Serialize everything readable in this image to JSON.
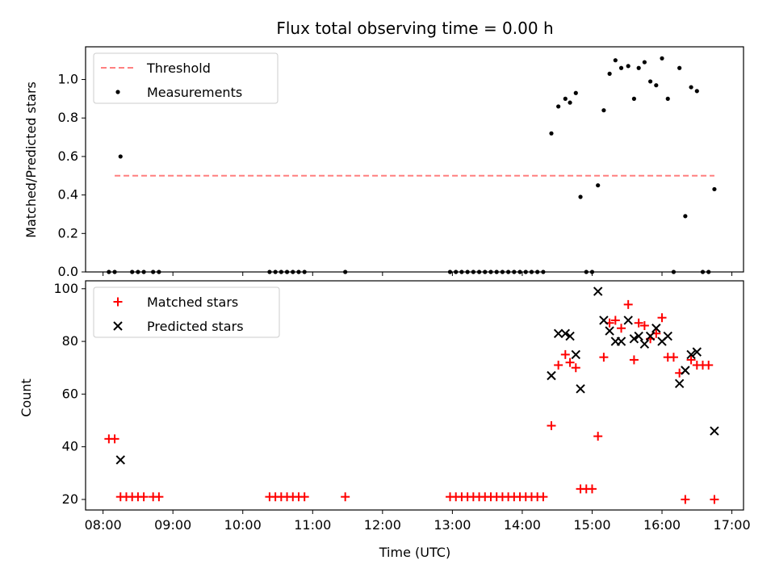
{
  "chart_data": [
    {
      "type": "scatter",
      "title": "Flux total observing time = 0.00 h",
      "ylabel": "Matched/Predicted stars",
      "xlim": [
        "07:45",
        "17:10"
      ],
      "ylim": [
        0,
        1.17
      ],
      "yticks": [
        0.0,
        0.2,
        0.4,
        0.6,
        0.8,
        1.0
      ],
      "ytick_labels": [
        "0.0",
        "0.2",
        "0.4",
        "0.6",
        "0.8",
        "1.0"
      ],
      "grid": false,
      "legend_position": "top-left",
      "legend": [
        {
          "label": "Threshold",
          "style": "dashed-line",
          "color": "#ff7f7f"
        },
        {
          "label": "Measurements",
          "style": "dot",
          "color": "#000000"
        }
      ],
      "threshold": {
        "value": 0.5,
        "x_start": "08:10",
        "x_end": "16:45"
      },
      "series": [
        {
          "name": "Measurements",
          "color": "#000000",
          "points": [
            [
              "08:05",
              0
            ],
            [
              "08:10",
              0
            ],
            [
              "08:15",
              0.6
            ],
            [
              "08:25",
              0
            ],
            [
              "08:30",
              0
            ],
            [
              "08:35",
              0
            ],
            [
              "08:43",
              0
            ],
            [
              "08:48",
              0
            ],
            [
              "10:23",
              0
            ],
            [
              "10:28",
              0
            ],
            [
              "10:33",
              0
            ],
            [
              "10:38",
              0
            ],
            [
              "10:43",
              0
            ],
            [
              "10:48",
              0
            ],
            [
              "10:53",
              0
            ],
            [
              "11:28",
              0
            ],
            [
              "12:58",
              0
            ],
            [
              "13:03",
              0
            ],
            [
              "13:08",
              0
            ],
            [
              "13:13",
              0
            ],
            [
              "13:18",
              0
            ],
            [
              "13:23",
              0
            ],
            [
              "13:28",
              0
            ],
            [
              "13:33",
              0
            ],
            [
              "13:38",
              0
            ],
            [
              "13:43",
              0
            ],
            [
              "13:48",
              0
            ],
            [
              "13:53",
              0
            ],
            [
              "13:58",
              0
            ],
            [
              "14:03",
              0
            ],
            [
              "14:08",
              0
            ],
            [
              "14:13",
              0
            ],
            [
              "14:18",
              0
            ],
            [
              "14:25",
              0.72
            ],
            [
              "14:31",
              0.86
            ],
            [
              "14:37",
              0.9
            ],
            [
              "14:41",
              0.88
            ],
            [
              "14:46",
              0.93
            ],
            [
              "14:50",
              0.39
            ],
            [
              "14:55",
              0
            ],
            [
              "15:00",
              0
            ],
            [
              "15:05",
              0.45
            ],
            [
              "15:10",
              0.84
            ],
            [
              "15:15",
              1.03
            ],
            [
              "15:20",
              1.1
            ],
            [
              "15:25",
              1.06
            ],
            [
              "15:31",
              1.07
            ],
            [
              "15:36",
              0.9
            ],
            [
              "15:40",
              1.06
            ],
            [
              "15:45",
              1.09
            ],
            [
              "15:50",
              0.99
            ],
            [
              "15:55",
              0.97
            ],
            [
              "16:00",
              1.11
            ],
            [
              "16:05",
              0.9
            ],
            [
              "16:10",
              0
            ],
            [
              "16:15",
              1.06
            ],
            [
              "16:20",
              0.29
            ],
            [
              "16:25",
              0.96
            ],
            [
              "16:30",
              0.94
            ],
            [
              "16:35",
              0
            ],
            [
              "16:40",
              0
            ],
            [
              "16:45",
              0.43
            ]
          ]
        }
      ]
    },
    {
      "type": "scatter",
      "xlabel": "Time (UTC)",
      "ylabel": "Count",
      "xlim": [
        "07:45",
        "17:10"
      ],
      "ylim": [
        16,
        103
      ],
      "yticks": [
        20,
        40,
        60,
        80,
        100
      ],
      "ytick_labels": [
        "20",
        "40",
        "60",
        "80",
        "100"
      ],
      "xticks": [
        "08:00",
        "09:00",
        "10:00",
        "11:00",
        "12:00",
        "13:00",
        "14:00",
        "15:00",
        "16:00",
        "17:00"
      ],
      "grid": false,
      "legend_position": "top-left",
      "legend": [
        {
          "label": "Matched stars",
          "style": "plus",
          "color": "#ff0000"
        },
        {
          "label": "Predicted stars",
          "style": "x",
          "color": "#000000"
        }
      ],
      "series": [
        {
          "name": "Matched stars",
          "marker": "plus",
          "color": "#ff0000",
          "points": [
            [
              "08:05",
              43
            ],
            [
              "08:10",
              43
            ],
            [
              "08:15",
              21
            ],
            [
              "08:20",
              21
            ],
            [
              "08:25",
              21
            ],
            [
              "08:30",
              21
            ],
            [
              "08:35",
              21
            ],
            [
              "08:43",
              21
            ],
            [
              "08:48",
              21
            ],
            [
              "10:23",
              21
            ],
            [
              "10:28",
              21
            ],
            [
              "10:33",
              21
            ],
            [
              "10:38",
              21
            ],
            [
              "10:43",
              21
            ],
            [
              "10:48",
              21
            ],
            [
              "10:53",
              21
            ],
            [
              "11:28",
              21
            ],
            [
              "12:58",
              21
            ],
            [
              "13:03",
              21
            ],
            [
              "13:08",
              21
            ],
            [
              "13:13",
              21
            ],
            [
              "13:18",
              21
            ],
            [
              "13:23",
              21
            ],
            [
              "13:28",
              21
            ],
            [
              "13:33",
              21
            ],
            [
              "13:38",
              21
            ],
            [
              "13:43",
              21
            ],
            [
              "13:48",
              21
            ],
            [
              "13:53",
              21
            ],
            [
              "13:58",
              21
            ],
            [
              "14:03",
              21
            ],
            [
              "14:08",
              21
            ],
            [
              "14:13",
              21
            ],
            [
              "14:18",
              21
            ],
            [
              "14:25",
              48
            ],
            [
              "14:31",
              71
            ],
            [
              "14:37",
              75
            ],
            [
              "14:41",
              72
            ],
            [
              "14:46",
              70
            ],
            [
              "14:50",
              24
            ],
            [
              "14:55",
              24
            ],
            [
              "15:00",
              24
            ],
            [
              "15:05",
              44
            ],
            [
              "15:10",
              74
            ],
            [
              "15:15",
              87
            ],
            [
              "15:20",
              88
            ],
            [
              "15:25",
              85
            ],
            [
              "15:31",
              94
            ],
            [
              "15:36",
              73
            ],
            [
              "15:40",
              87
            ],
            [
              "15:45",
              86
            ],
            [
              "15:50",
              81
            ],
            [
              "15:55",
              83
            ],
            [
              "16:00",
              89
            ],
            [
              "16:05",
              74
            ],
            [
              "16:10",
              74
            ],
            [
              "16:15",
              68
            ],
            [
              "16:20",
              20
            ],
            [
              "16:25",
              73
            ],
            [
              "16:30",
              71
            ],
            [
              "16:35",
              71
            ],
            [
              "16:40",
              71
            ],
            [
              "16:45",
              20
            ]
          ]
        },
        {
          "name": "Predicted stars",
          "marker": "x",
          "color": "#000000",
          "points": [
            [
              "08:15",
              35
            ],
            [
              "14:25",
              67
            ],
            [
              "14:31",
              83
            ],
            [
              "14:37",
              83
            ],
            [
              "14:41",
              82
            ],
            [
              "14:46",
              75
            ],
            [
              "14:50",
              62
            ],
            [
              "15:05",
              99
            ],
            [
              "15:10",
              88
            ],
            [
              "15:15",
              84
            ],
            [
              "15:20",
              80
            ],
            [
              "15:25",
              80
            ],
            [
              "15:31",
              88
            ],
            [
              "15:36",
              81
            ],
            [
              "15:40",
              82
            ],
            [
              "15:45",
              79
            ],
            [
              "15:50",
              82
            ],
            [
              "15:55",
              85
            ],
            [
              "16:00",
              80
            ],
            [
              "16:05",
              82
            ],
            [
              "16:15",
              64
            ],
            [
              "16:20",
              69
            ],
            [
              "16:25",
              75
            ],
            [
              "16:30",
              76
            ],
            [
              "16:45",
              46
            ]
          ]
        }
      ]
    }
  ]
}
